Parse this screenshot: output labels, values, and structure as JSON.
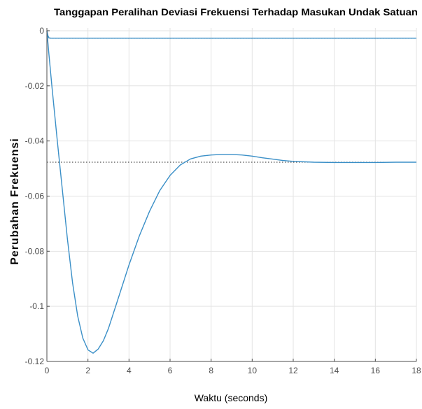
{
  "chart_data": {
    "type": "line",
    "title": "Tanggapan Peralihan Deviasi Frekuensi Terhadap Masukan Undak Satuan",
    "xlabel": "Waktu (seconds)",
    "ylabel": "Perubahan Frekuensi",
    "xlim": [
      0,
      18
    ],
    "ylim": [
      -0.12,
      0.001
    ],
    "xticks": [
      0,
      2,
      4,
      6,
      8,
      10,
      12,
      14,
      16,
      18
    ],
    "xtick_labels": [
      "0",
      "2",
      "4",
      "6",
      "8",
      "10",
      "12",
      "14",
      "16",
      "18"
    ],
    "yticks": [
      0,
      -0.02,
      -0.04,
      -0.06,
      -0.08,
      -0.1,
      -0.12
    ],
    "ytick_labels": [
      "0",
      "-0.02",
      "-0.04",
      "-0.06",
      "-0.08",
      "-0.1",
      "-0.12"
    ],
    "grid": true,
    "line_color": "#3a8fc7",
    "reference_lines": [
      {
        "y": -0.0027,
        "style": "dotted"
      },
      {
        "y": -0.0477,
        "style": "dotted"
      }
    ],
    "series": [
      {
        "x": [
          0,
          0.05,
          0.1,
          0.2,
          0.3,
          0.5,
          1.0,
          2.0,
          4.0,
          8.0,
          12.0,
          18.0
        ],
        "y": [
          0,
          -0.0018,
          -0.0026,
          -0.0027,
          -0.0027,
          -0.0027,
          -0.0027,
          -0.0027,
          -0.0027,
          -0.0027,
          -0.0027,
          -0.0027
        ]
      },
      {
        "x": [
          0,
          0.1,
          0.25,
          0.5,
          0.75,
          1.0,
          1.25,
          1.5,
          1.75,
          2.0,
          2.25,
          2.5,
          2.75,
          3.0,
          3.5,
          4.0,
          4.5,
          5.0,
          5.5,
          6.0,
          6.5,
          7.0,
          7.5,
          8.0,
          8.5,
          9.0,
          9.5,
          10.0,
          10.5,
          11.0,
          11.5,
          12.0,
          13.0,
          14.0,
          15.0,
          16.0,
          17.0,
          18.0
        ],
        "y": [
          0,
          -0.0085,
          -0.0205,
          -0.0395,
          -0.0575,
          -0.0755,
          -0.0915,
          -0.1035,
          -0.1115,
          -0.1158,
          -0.117,
          -0.1155,
          -0.1125,
          -0.108,
          -0.0965,
          -0.085,
          -0.0745,
          -0.0655,
          -0.058,
          -0.0525,
          -0.0487,
          -0.0465,
          -0.0455,
          -0.0451,
          -0.0449,
          -0.0449,
          -0.0451,
          -0.0455,
          -0.0461,
          -0.0466,
          -0.0471,
          -0.0474,
          -0.0477,
          -0.0478,
          -0.0478,
          -0.0478,
          -0.0477,
          -0.0477
        ]
      }
    ]
  }
}
